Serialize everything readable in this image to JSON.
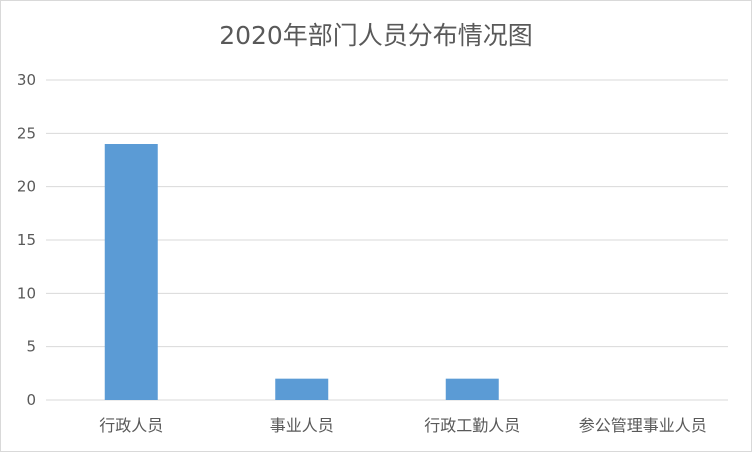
{
  "chart_data": {
    "type": "bar",
    "title": "2020年部门人员分布情况图",
    "categories": [
      "行政人员",
      "事业人员",
      "行政工勤人员",
      "参公管理事业人员"
    ],
    "values": [
      24,
      2,
      2,
      0
    ],
    "ylim": [
      0,
      30
    ],
    "yticks": [
      0,
      5,
      10,
      15,
      20,
      25,
      30
    ],
    "xlabel": "",
    "ylabel": "",
    "grid": true,
    "bar_color": "#5b9bd5",
    "grid_color": "#d9d9d9"
  }
}
